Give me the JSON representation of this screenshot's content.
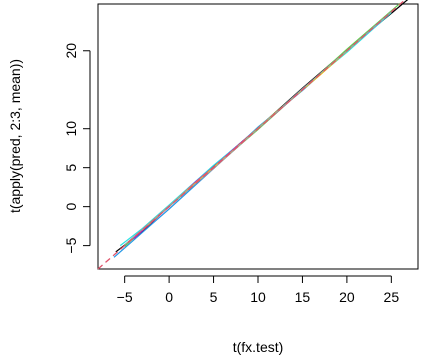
{
  "chart_data": {
    "type": "line",
    "title": "",
    "xlabel": "t(fx.test)",
    "ylabel": "t(apply(pred, 2:3, mean))",
    "xlim": [
      -8,
      28
    ],
    "ylim": [
      -8,
      26
    ],
    "xticks": [
      -5,
      0,
      5,
      10,
      15,
      20,
      25
    ],
    "yticks": [
      -5,
      0,
      5,
      10,
      20
    ],
    "grid": false,
    "legend": "none",
    "reference_line": {
      "slope": 1,
      "intercept": 0,
      "color": "#df536b",
      "style": "dashed"
    },
    "series": [
      {
        "color": "#000000",
        "x": [
          -6,
          -3,
          0,
          5,
          10,
          15,
          20,
          25,
          27.5
        ],
        "y": [
          -5.8,
          -3.2,
          0.1,
          5.2,
          10.1,
          15.2,
          20.1,
          24.8,
          27.2
        ]
      },
      {
        "color": "#2297e6",
        "x": [
          -6.2,
          -4,
          -2,
          0,
          5,
          10,
          15,
          20,
          25
        ],
        "y": [
          -6.5,
          -4.3,
          -2.3,
          -0.3,
          4.9,
          10.2,
          14.9,
          20.0,
          25.1
        ]
      },
      {
        "color": "#28e2e5",
        "x": [
          -5.5,
          -3,
          0,
          5,
          10,
          15,
          20,
          25
        ],
        "y": [
          -5.0,
          -2.8,
          0.2,
          5.3,
          10.0,
          15.1,
          19.8,
          24.9
        ]
      },
      {
        "color": "#61d04f",
        "x": [
          -5,
          -2,
          0,
          5,
          10,
          15,
          20,
          26
        ],
        "y": [
          -5.1,
          -1.9,
          0.0,
          5.0,
          9.9,
          15.0,
          20.2,
          26.1
        ]
      },
      {
        "color": "#cd0bbc",
        "x": [
          -4,
          0,
          3,
          5,
          8,
          12,
          18,
          24
        ],
        "y": [
          -4.1,
          0.0,
          3.2,
          5.1,
          8.1,
          12.0,
          18.0,
          24.0
        ]
      },
      {
        "color": "#f5c710",
        "x": [
          -3,
          2,
          7,
          12,
          17,
          22
        ],
        "y": [
          -3.0,
          2.1,
          7.0,
          12.1,
          16.9,
          22.0
        ]
      },
      {
        "color": "#9e9e9e",
        "x": [
          -5,
          0,
          5,
          10,
          15,
          20,
          25
        ],
        "y": [
          -4.9,
          0.1,
          4.9,
          10.0,
          15.1,
          20.0,
          25.0
        ]
      }
    ]
  }
}
